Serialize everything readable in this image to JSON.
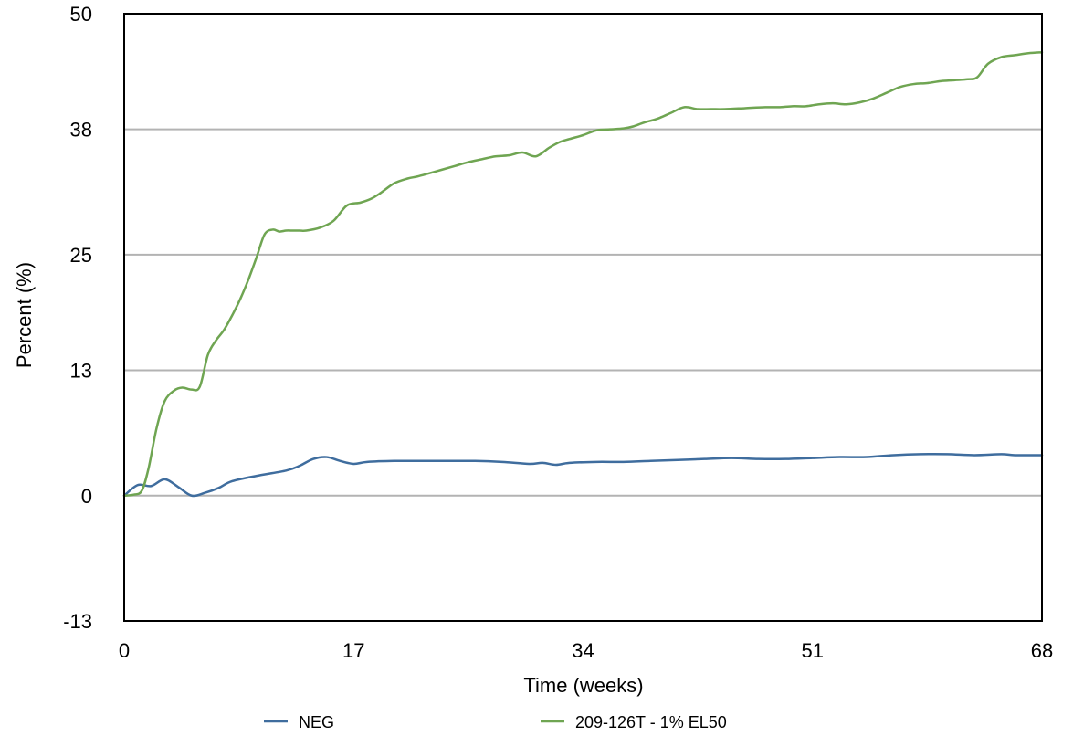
{
  "chart_data": {
    "type": "line",
    "title": "",
    "xlabel": "Time (weeks)",
    "ylabel": "Percent (%)",
    "xlim": [
      0,
      68
    ],
    "ylim": [
      -13,
      50
    ],
    "x_ticks": [
      "0",
      "17",
      "34",
      "51",
      "68"
    ],
    "y_ticks": [
      "50",
      "38",
      "25",
      "13",
      "0",
      "-13"
    ],
    "grid": "horizontal",
    "legend_position": "bottom",
    "series": [
      {
        "name": "NEG",
        "color": "#3f6d9e",
        "x": [
          0,
          1,
          2,
          3,
          4,
          5,
          6,
          7,
          8,
          10,
          12,
          13,
          14,
          15,
          16,
          17,
          18,
          20,
          22,
          24,
          26,
          28,
          30,
          31,
          32,
          33,
          35,
          37,
          39,
          41,
          43,
          45,
          47,
          49,
          51,
          53,
          55,
          57,
          59,
          61,
          63,
          65,
          66,
          68
        ],
        "y": [
          0,
          1.1,
          1.0,
          1.7,
          0.9,
          0.0,
          0.3,
          0.8,
          1.5,
          2.1,
          2.6,
          3.1,
          3.8,
          4.0,
          3.6,
          3.3,
          3.5,
          3.6,
          3.6,
          3.6,
          3.6,
          3.5,
          3.3,
          3.4,
          3.2,
          3.4,
          3.5,
          3.5,
          3.6,
          3.7,
          3.8,
          3.9,
          3.8,
          3.8,
          3.9,
          4.0,
          4.0,
          4.2,
          4.3,
          4.3,
          4.2,
          4.3,
          4.2,
          4.2
        ]
      },
      {
        "name": "209-126T - 1% EL50",
        "color": "#6fa552",
        "x": [
          0,
          0.7,
          1.3,
          1.8,
          2.4,
          3.0,
          3.7,
          4.3,
          5.0,
          5.6,
          6.2,
          6.8,
          7.4,
          8.0,
          8.6,
          9.2,
          9.8,
          10.4,
          11.0,
          11.5,
          12.0,
          12.5,
          13.0,
          13.5,
          14.5,
          15.5,
          16.5,
          17.5,
          18.3,
          19.0,
          20.0,
          21.0,
          21.7,
          22.5,
          23.5,
          24.5,
          25.5,
          26.5,
          27.5,
          28.5,
          29.5,
          30.5,
          31.5,
          32.3,
          33.0,
          34.0,
          35.0,
          36.0,
          37.0,
          37.7,
          38.5,
          39.5,
          40.5,
          41.5,
          42.5,
          43.5,
          44.5,
          46.0,
          47.5,
          48.5,
          49.5,
          50.5,
          51.5,
          52.5,
          53.5,
          54.5,
          55.5,
          56.5,
          57.5,
          58.5,
          59.5,
          60.5,
          61.5,
          62.5,
          63.2,
          64.0,
          65.0,
          66.0,
          67.0,
          68.0
        ],
        "y": [
          0,
          0.1,
          0.5,
          2.8,
          7.0,
          9.8,
          10.9,
          11.2,
          11.0,
          11.3,
          14.6,
          16.1,
          17.2,
          18.7,
          20.4,
          22.4,
          24.7,
          27.1,
          27.6,
          27.4,
          27.5,
          27.5,
          27.5,
          27.5,
          27.8,
          28.5,
          30.1,
          30.4,
          30.8,
          31.4,
          32.4,
          32.9,
          33.1,
          33.4,
          33.8,
          34.2,
          34.6,
          34.9,
          35.2,
          35.3,
          35.6,
          35.2,
          36.1,
          36.7,
          37.0,
          37.4,
          37.9,
          38.0,
          38.1,
          38.3,
          38.7,
          39.1,
          39.7,
          40.3,
          40.1,
          40.1,
          40.1,
          40.2,
          40.3,
          40.3,
          40.4,
          40.4,
          40.6,
          40.7,
          40.6,
          40.8,
          41.2,
          41.8,
          42.4,
          42.7,
          42.8,
          43.0,
          43.1,
          43.2,
          43.4,
          44.8,
          45.5,
          45.7,
          45.9,
          46.0
        ]
      }
    ]
  }
}
